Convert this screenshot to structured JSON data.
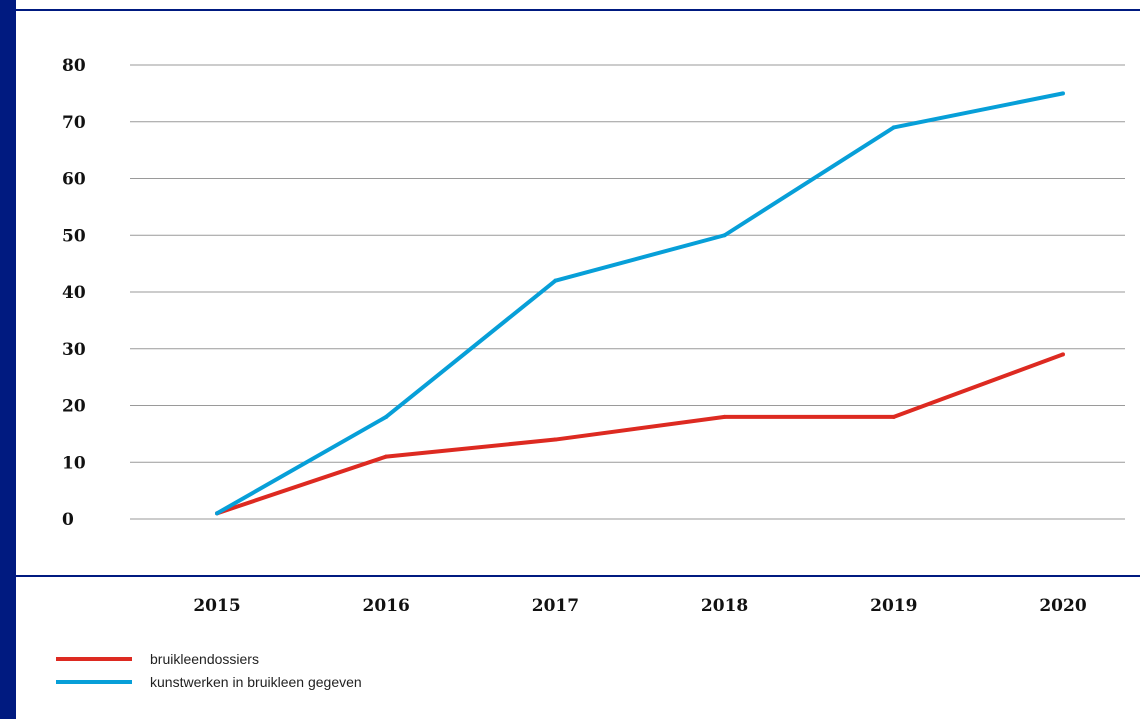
{
  "chart_data": {
    "type": "line",
    "x": [
      "2015",
      "2016",
      "2017",
      "2018",
      "2019",
      "2020"
    ],
    "yticks": [
      "0",
      "10",
      "20",
      "30",
      "40",
      "50",
      "60",
      "70",
      "80"
    ],
    "ylim": [
      0,
      80
    ],
    "grid": true,
    "legend_position": "bottom-left",
    "series": [
      {
        "name": "bruikleendossiers",
        "color": "#dd2a21",
        "values": [
          1,
          11,
          14,
          18,
          18,
          29
        ]
      },
      {
        "name": "kunstwerken in bruikleen gegeven",
        "color": "#079fd8",
        "values": [
          1,
          18,
          42,
          50,
          69,
          75
        ]
      }
    ]
  }
}
